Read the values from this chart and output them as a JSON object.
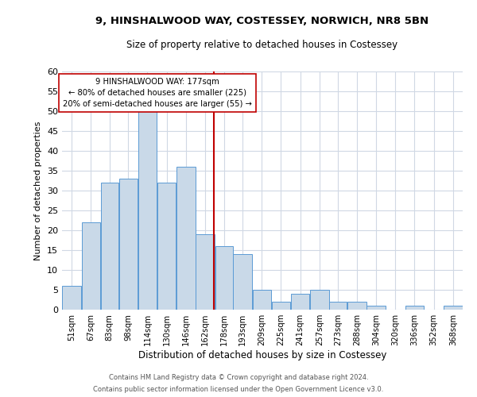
{
  "title": "9, HINSHALWOOD WAY, COSTESSEY, NORWICH, NR8 5BN",
  "subtitle": "Size of property relative to detached houses in Costessey",
  "xlabel": "Distribution of detached houses by size in Costessey",
  "ylabel": "Number of detached properties",
  "bar_color": "#c9d9e8",
  "bar_edge_color": "#5b9bd5",
  "vline_x": 177,
  "vline_color": "#c00000",
  "categories": [
    "51sqm",
    "67sqm",
    "83sqm",
    "98sqm",
    "114sqm",
    "130sqm",
    "146sqm",
    "162sqm",
    "178sqm",
    "193sqm",
    "209sqm",
    "225sqm",
    "241sqm",
    "257sqm",
    "273sqm",
    "288sqm",
    "304sqm",
    "320sqm",
    "336sqm",
    "352sqm",
    "368sqm"
  ],
  "bin_edges": [
    51,
    67,
    83,
    98,
    114,
    130,
    146,
    162,
    178,
    193,
    209,
    225,
    241,
    257,
    273,
    288,
    304,
    320,
    336,
    352,
    368,
    384
  ],
  "values": [
    6,
    22,
    32,
    33,
    50,
    32,
    36,
    19,
    16,
    14,
    5,
    2,
    4,
    5,
    2,
    2,
    1,
    0,
    1,
    0,
    1
  ],
  "ylim": [
    0,
    60
  ],
  "yticks": [
    0,
    5,
    10,
    15,
    20,
    25,
    30,
    35,
    40,
    45,
    50,
    55,
    60
  ],
  "annotation_text": "9 HINSHALWOOD WAY: 177sqm\n← 80% of detached houses are smaller (225)\n20% of semi-detached houses are larger (55) →",
  "annotation_box_color": "#ffffff",
  "annotation_box_edge": "#c00000",
  "footer1": "Contains HM Land Registry data © Crown copyright and database right 2024.",
  "footer2": "Contains public sector information licensed under the Open Government Licence v3.0.",
  "bg_color": "#ffffff",
  "grid_color": "#d0d8e4"
}
